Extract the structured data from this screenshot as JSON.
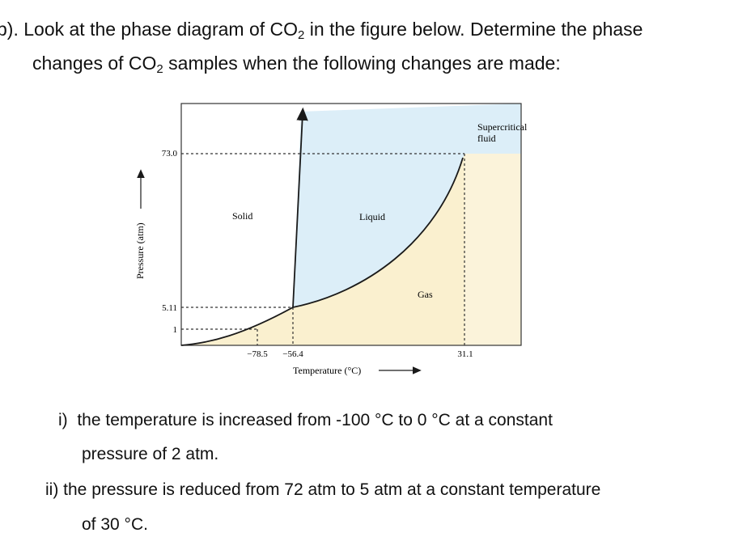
{
  "question": {
    "intro_line1_a": "b). Look at the phase diagram of CO",
    "sub": "2",
    "intro_line1_b": " in the figure below. Determine the phase",
    "intro_line2_a": "changes of CO",
    "intro_line2_b": " samples when the following changes are made:"
  },
  "diagram": {
    "y_axis_label": "Pressure (atm)",
    "x_axis_label": "Temperature (°C)",
    "x_ticks": [
      "−78.5",
      "−56.4",
      "31.1"
    ],
    "y_ticks": [
      "73.0",
      "5.11",
      "1"
    ],
    "regions": {
      "solid": "Solid",
      "liquid": "Liquid",
      "gas": "Gas",
      "supercritical_1": "Supercritical",
      "supercritical_2": "fluid"
    },
    "colors": {
      "liquid": "#dceef8",
      "gas": "#faf0cf",
      "supercritical": "#fbf3da",
      "line": "#1a1a1a"
    }
  },
  "items": {
    "i1_num": "i)",
    "i1_text": "the temperature is increased from -100 °C to 0 °C at a constant",
    "i1_cont": "pressure of 2 atm.",
    "i2_num": "ii)",
    "i2_text": "the pressure is reduced from 72 atm to 5 atm at a constant temperature",
    "i2_cont": "of 30 °C."
  }
}
